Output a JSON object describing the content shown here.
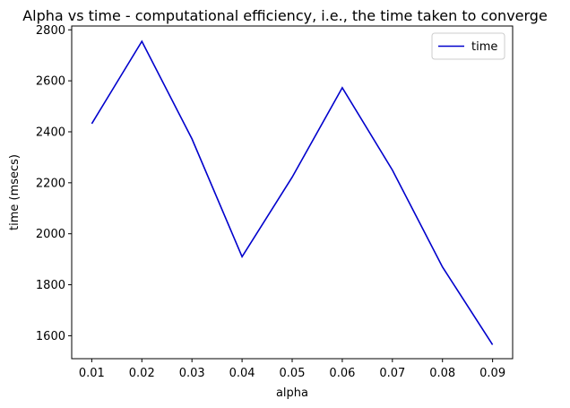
{
  "chart_data": {
    "type": "line",
    "title": "Alpha vs time - computational efficiency, i.e., the time taken to converge",
    "xlabel": "alpha",
    "ylabel": "time (msecs)",
    "x": [
      0.01,
      0.02,
      0.03,
      0.04,
      0.05,
      0.06,
      0.07,
      0.08,
      0.09
    ],
    "x_tick_labels": [
      "0.01",
      "0.02",
      "0.03",
      "0.04",
      "0.05",
      "0.06",
      "0.07",
      "0.08",
      "0.09"
    ],
    "y_ticks": [
      1600,
      1800,
      2000,
      2200,
      2400,
      2600,
      2800
    ],
    "y_tick_labels": [
      "1600",
      "1800",
      "2000",
      "2200",
      "2400",
      "2600",
      "2800"
    ],
    "xlim": [
      0.006,
      0.094
    ],
    "ylim": [
      1510,
      2815
    ],
    "series": [
      {
        "name": "time",
        "color": "#0000cc",
        "values": [
          2432,
          2755,
          2372,
          1910,
          2222,
          2573,
          2250,
          1870,
          1565
        ]
      }
    ],
    "legend_position": "top-right",
    "grid": false
  }
}
